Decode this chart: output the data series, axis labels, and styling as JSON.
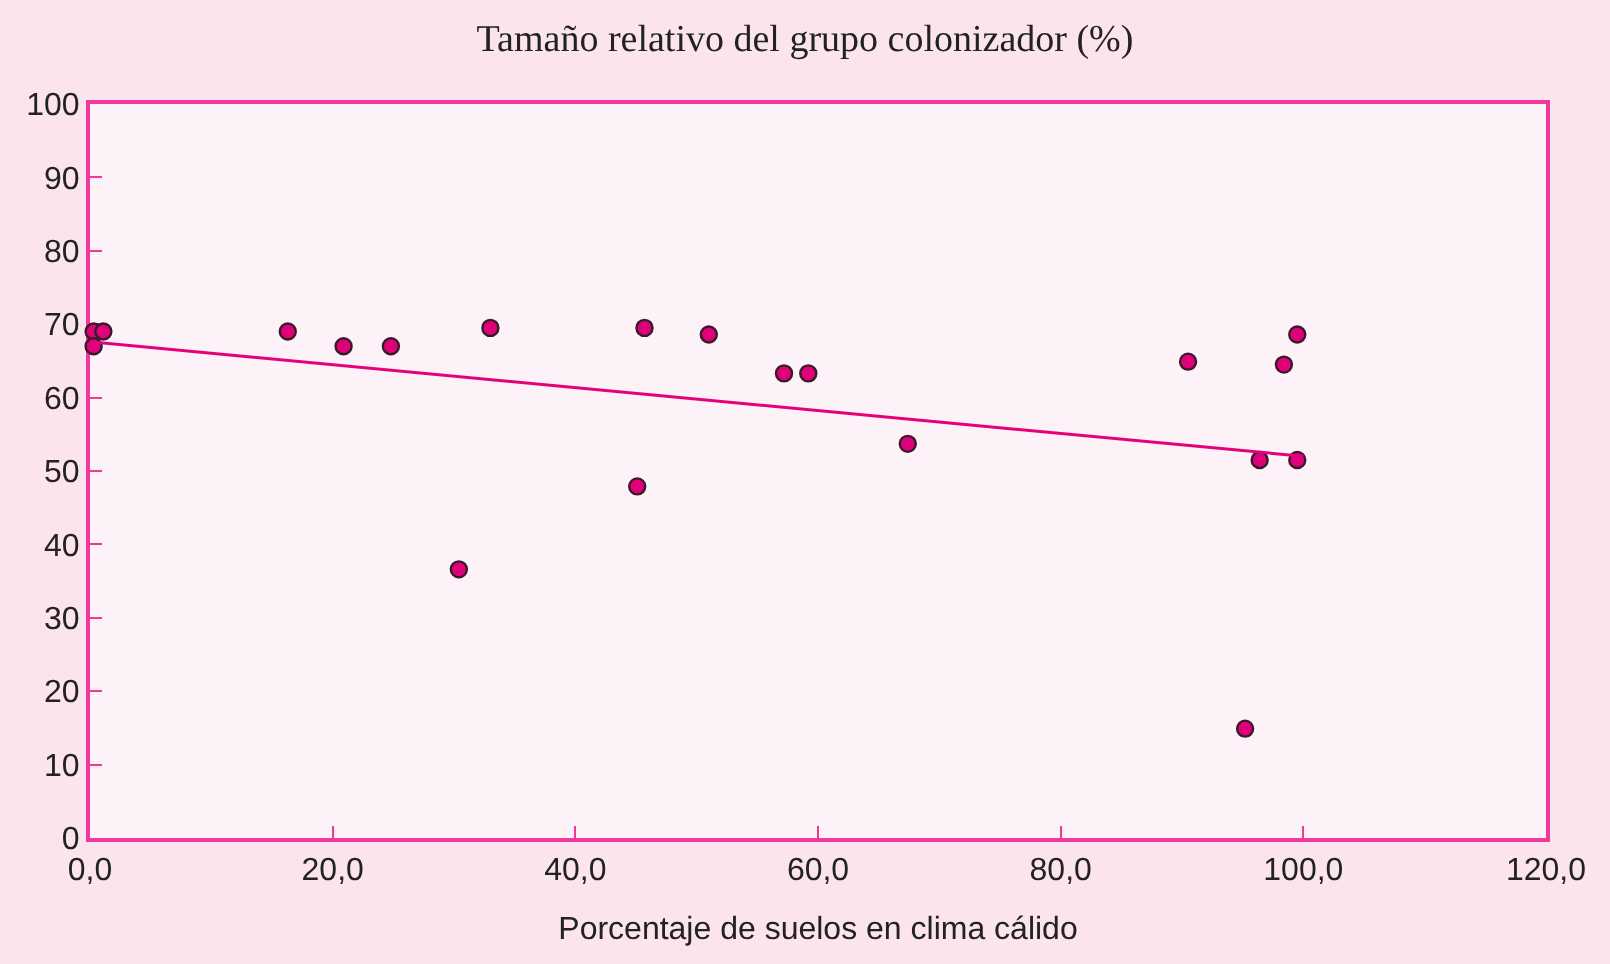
{
  "chart_data": {
    "type": "scatter",
    "title": "Tamaño relativo del grupo colonizador (%)",
    "xlabel": "Porcentaje de suelos en clima cálido",
    "xlim": [
      0,
      120
    ],
    "xticks": [
      {
        "value": 0,
        "label": "0,0"
      },
      {
        "value": 20,
        "label": "20,0"
      },
      {
        "value": 40,
        "label": "40,0"
      },
      {
        "value": 60,
        "label": "60,0"
      },
      {
        "value": 80,
        "label": "80,0"
      },
      {
        "value": 100,
        "label": "100,0"
      },
      {
        "value": 120,
        "label": "120,0"
      }
    ],
    "ylim": [
      0,
      100
    ],
    "yticks": [
      0,
      10,
      20,
      30,
      40,
      50,
      60,
      70,
      80,
      90,
      100
    ],
    "grid": false,
    "legend": false,
    "series": [
      {
        "marker": "circle",
        "color": "#e0007a",
        "x": [
          0.3,
          1.1,
          0.3,
          16.3,
          20.9,
          24.8,
          30.4,
          33.0,
          45.1,
          45.7,
          51.0,
          57.2,
          59.2,
          67.4,
          90.5,
          95.2,
          96.4,
          98.4,
          99.5,
          99.5
        ],
        "values": [
          69.0,
          69.0,
          67.0,
          69.0,
          67.0,
          67.0,
          36.6,
          69.5,
          47.9,
          69.5,
          68.6,
          63.3,
          63.3,
          53.7,
          64.9,
          14.9,
          51.5,
          64.5,
          68.6,
          51.5
        ]
      },
      {
        "type": "line",
        "color": "#e6007e",
        "line_style": "solid",
        "x": [
          0,
          100
        ],
        "values": [
          67.6,
          52.0
        ]
      }
    ]
  }
}
